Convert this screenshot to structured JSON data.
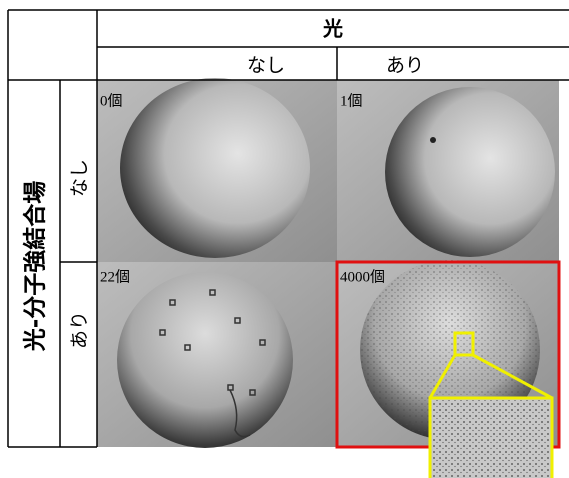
{
  "header": {
    "title": "光",
    "columns": [
      "なし",
      "あり"
    ]
  },
  "row_header": "光-分子強結合場",
  "rows": [
    {
      "label": "なし",
      "cells": [
        "0個",
        "1個"
      ]
    },
    {
      "label": "あり",
      "cells": [
        "22個",
        "4000個"
      ]
    }
  ]
}
